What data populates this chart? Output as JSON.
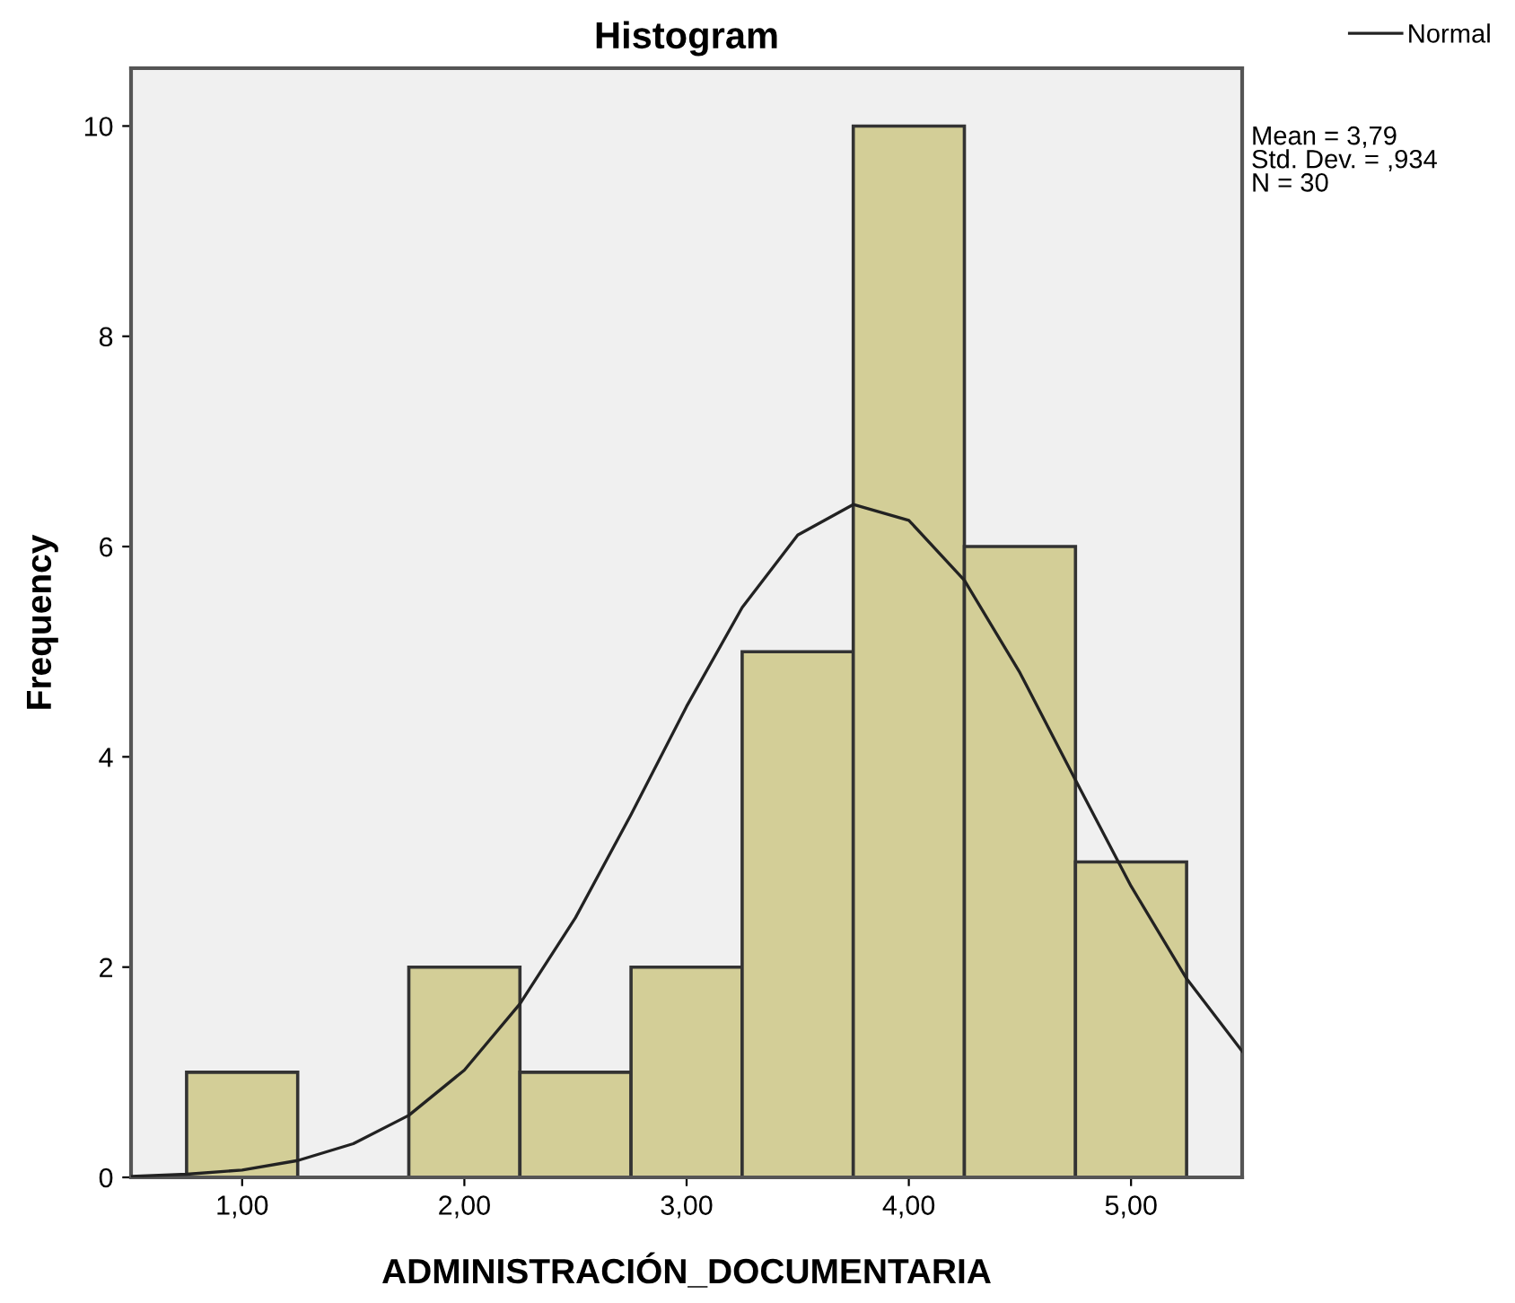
{
  "chart_data": {
    "type": "histogram",
    "title": "Histogram",
    "xlabel": "ADMINISTRACIÓN_DOCUMENTARIA",
    "ylabel": "Frequency",
    "bins": [
      0.75,
      1.25,
      1.75,
      2.25,
      2.75,
      3.25,
      3.75,
      4.25,
      4.75,
      5.25
    ],
    "series": [
      {
        "color": "#d3ce97",
        "values": [
          1,
          0,
          2,
          1,
          2,
          5,
          10,
          6,
          3
        ]
      },
      {
        "type": "line",
        "name": "Normal",
        "color": "#222222",
        "x": [
          0.5,
          0.75,
          1.0,
          1.25,
          1.5,
          1.75,
          2.0,
          2.25,
          2.5,
          2.75,
          3.0,
          3.25,
          3.5,
          3.75,
          4.0,
          4.25,
          4.5,
          4.75,
          5.0,
          5.25,
          5.5
        ],
        "values": [
          0.01,
          0.03,
          0.07,
          0.16,
          0.32,
          0.59,
          1.02,
          1.65,
          2.47,
          3.45,
          4.48,
          5.42,
          6.11,
          6.4,
          6.25,
          5.68,
          4.8,
          3.78,
          2.77,
          1.89,
          1.2
        ]
      }
    ],
    "xlim": [
      0.5,
      5.5
    ],
    "xticks": [
      {
        "value": 1,
        "label": "1,00"
      },
      {
        "value": 2,
        "label": "2,00"
      },
      {
        "value": 3,
        "label": "3,00"
      },
      {
        "value": 4,
        "label": "4,00"
      },
      {
        "value": 5,
        "label": "5,00"
      }
    ],
    "ylim": [
      0,
      10.55
    ],
    "yticks": [
      0,
      2,
      4,
      6,
      8,
      10
    ],
    "annotations": [
      "Mean = 3,79\nStd. Dev. = ,934\nN = 30"
    ],
    "legend": "top right",
    "grid": false
  }
}
